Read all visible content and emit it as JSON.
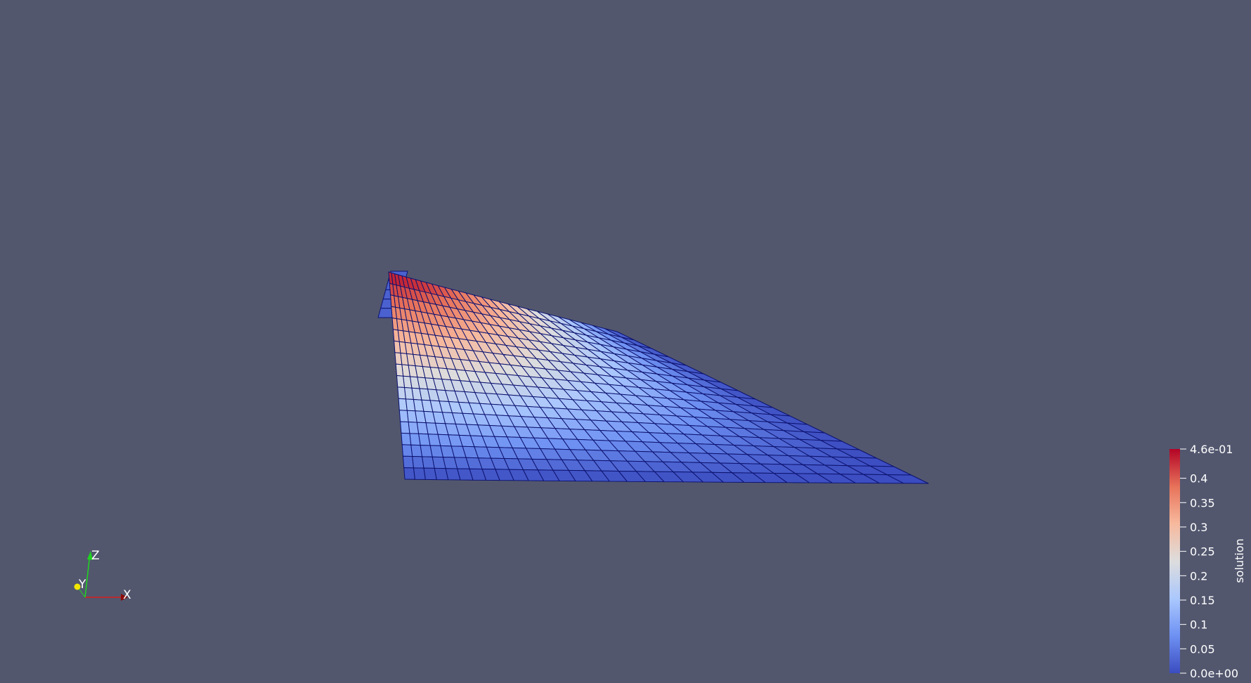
{
  "scalar_bar": {
    "title": "solution",
    "max_label": "4.6e-01",
    "min_label": "0.0e+00",
    "range": [
      0.0,
      0.46
    ],
    "ticks": [
      "0.4",
      "0.35",
      "0.3",
      "0.25",
      "0.2",
      "0.15",
      "0.1",
      "0.05"
    ],
    "colormap": [
      "#3b4cc0",
      "#6f92f3",
      "#aac7fd",
      "#dddddd",
      "#f7b89c",
      "#e7745b",
      "#b40426"
    ]
  },
  "axes": {
    "x": "X",
    "y": "Y",
    "z": "Z"
  },
  "colors": {
    "background": "#52576e",
    "mesh_lines": "#0d1370",
    "x_axis": "#d81e1e",
    "y_axis": "#f2e600",
    "z_axis": "#1fd41f"
  }
}
